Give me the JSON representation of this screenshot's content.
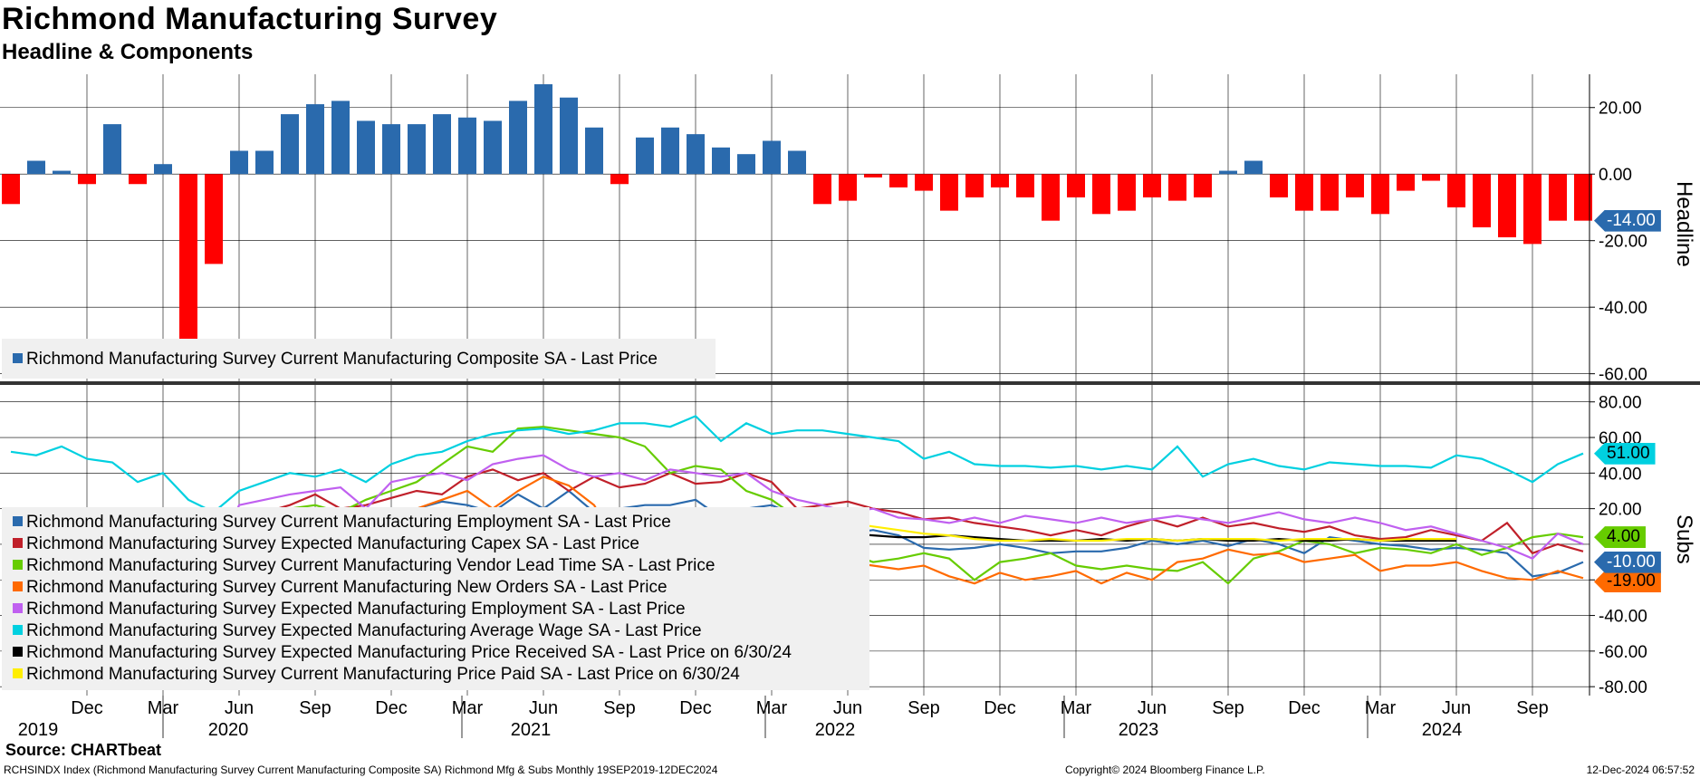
{
  "title": "Richmond Manufacturing Survey",
  "subtitle": "Headline & Components",
  "source": "Source: CHARTbeat",
  "footer": {
    "left": "RCHSINDX Index (Richmond Manufacturing Survey Current Manufacturing Composite SA) Richmond Mfg & Subs  Monthly 19SEP2019-12DEC2024",
    "center": "Copyright© 2024 Bloomberg Finance L.P.",
    "right": "12-Dec-2024 06:57:52"
  },
  "colors": {
    "positive_bar": "#2a6aad",
    "negative_bar": "#ff0000"
  },
  "chart_data": [
    {
      "type": "bar",
      "panel_label": "Headline",
      "ylim": [
        -62,
        30
      ],
      "yticks": [
        "20.00",
        "0.00",
        "-20.00",
        "-40.00",
        "-60.00"
      ],
      "last_value_label": "-14.00",
      "legend": "Richmond Manufacturing Survey Current Manufacturing Composite SA - Last Price",
      "categories": [
        "2019-09",
        "2019-10",
        "2019-11",
        "2019-12",
        "2020-01",
        "2020-02",
        "2020-03",
        "2020-04",
        "2020-05",
        "2020-06",
        "2020-07",
        "2020-08",
        "2020-09",
        "2020-10",
        "2020-11",
        "2020-12",
        "2021-01",
        "2021-02",
        "2021-03",
        "2021-04",
        "2021-05",
        "2021-06",
        "2021-07",
        "2021-08",
        "2021-09",
        "2021-10",
        "2021-11",
        "2021-12",
        "2022-01",
        "2022-02",
        "2022-03",
        "2022-04",
        "2022-05",
        "2022-06",
        "2022-07",
        "2022-08",
        "2022-09",
        "2022-10",
        "2022-11",
        "2022-12",
        "2023-01",
        "2023-02",
        "2023-03",
        "2023-04",
        "2023-05",
        "2023-06",
        "2023-07",
        "2023-08",
        "2023-09",
        "2023-10",
        "2023-11",
        "2023-12",
        "2024-01",
        "2024-02",
        "2024-03",
        "2024-04",
        "2024-05",
        "2024-06",
        "2024-07",
        "2024-08",
        "2024-09",
        "2024-10",
        "2024-11"
      ],
      "values": [
        -9,
        4,
        1,
        -3,
        15,
        -3,
        3,
        -54,
        -27,
        7,
        7,
        18,
        21,
        22,
        16,
        15,
        15,
        18,
        17,
        16,
        22,
        27,
        23,
        14,
        -3,
        11,
        14,
        12,
        8,
        6,
        10,
        7,
        -9,
        -8,
        -1,
        -4,
        -5,
        -11,
        -7,
        -4,
        -7,
        -14,
        -7,
        -12,
        -11,
        -7,
        -8,
        -7,
        1,
        4,
        -7,
        -11,
        -11,
        -7,
        -12,
        -5,
        -2,
        -10,
        -16,
        -19,
        -21,
        -14,
        -14
      ]
    },
    {
      "type": "line",
      "panel_label": "Subs",
      "ylim": [
        -85,
        88
      ],
      "yticks": [
        "80.00",
        "60.00",
        "40.00",
        "20.00",
        "-20.00",
        "-40.00",
        "-60.00",
        "-80.00"
      ],
      "x_start": "2019-09",
      "x_labels": [
        "Dec",
        "Mar",
        "Jun",
        "Sep",
        "Dec",
        "Mar",
        "Jun",
        "Sep",
        "Dec",
        "Mar",
        "Jun",
        "Sep",
        "Dec",
        "Mar",
        "Jun",
        "Sep",
        "Dec",
        "Mar",
        "Jun",
        "Sep"
      ],
      "year_labels": [
        "2019",
        "2020",
        "2021",
        "2022",
        "2023",
        "2024"
      ],
      "last_value_labels": [
        {
          "value": "51.00",
          "color": "#00d0e0"
        },
        {
          "value": "4.00",
          "color": "#66cc00"
        },
        {
          "value": "-10.00",
          "color": "#2a6aad"
        },
        {
          "value": "-19.00",
          "color": "#ff6a00"
        }
      ],
      "series": [
        {
          "name": "Richmond Manufacturing Survey Current Manufacturing Employment SA - Last Price",
          "color": "#2a6aad",
          "values": [
            5,
            10,
            12,
            8,
            10,
            0,
            -5,
            -20,
            -8,
            5,
            8,
            15,
            18,
            12,
            20,
            15,
            20,
            24,
            22,
            18,
            28,
            20,
            30,
            18,
            20,
            22,
            22,
            25,
            15,
            20,
            22,
            16,
            10,
            6,
            8,
            5,
            -2,
            -3,
            -2,
            0,
            -2,
            -5,
            -4,
            -4,
            -2,
            2,
            0,
            2,
            -1,
            3,
            0,
            -5,
            4,
            2,
            0,
            -1,
            -3,
            -2,
            -3,
            -5,
            -18,
            -16,
            -10
          ]
        },
        {
          "name": "Richmond Manufacturing Survey Expected Manufacturing Capex SA - Last Price",
          "color": "#c0202a",
          "values": [
            15,
            12,
            14,
            10,
            16,
            14,
            10,
            -25,
            -30,
            10,
            18,
            22,
            28,
            20,
            22,
            26,
            30,
            28,
            38,
            42,
            36,
            40,
            30,
            38,
            32,
            34,
            40,
            34,
            35,
            40,
            35,
            20,
            22,
            24,
            20,
            18,
            14,
            15,
            12,
            10,
            8,
            5,
            8,
            5,
            10,
            14,
            10,
            15,
            10,
            12,
            9,
            7,
            10,
            5,
            3,
            4,
            8,
            5,
            2,
            12,
            -5,
            0,
            -4
          ]
        },
        {
          "name": "Richmond Manufacturing Survey Current Manufacturing Vendor Lead Time SA - Last Price",
          "color": "#66cc00",
          "values": [
            5,
            8,
            4,
            6,
            20,
            15,
            10,
            -20,
            -40,
            2,
            12,
            20,
            22,
            18,
            25,
            30,
            35,
            45,
            55,
            52,
            65,
            66,
            64,
            62,
            60,
            55,
            40,
            44,
            42,
            30,
            25,
            15,
            5,
            -5,
            -10,
            -8,
            -5,
            -8,
            -20,
            -10,
            -8,
            -5,
            -12,
            -14,
            -12,
            -14,
            -15,
            -10,
            -22,
            -8,
            -4,
            2,
            0,
            -5,
            -2,
            -3,
            -5,
            0,
            -6,
            -2,
            4,
            6,
            4
          ]
        },
        {
          "name": "Richmond Manufacturing Survey Current Manufacturing New Orders SA - Last Price",
          "color": "#ff6a00",
          "values": [
            -10,
            -5,
            -4,
            -5,
            -3,
            -2,
            -1,
            -55,
            -30,
            5,
            10,
            15,
            18,
            10,
            15,
            15,
            20,
            25,
            30,
            20,
            30,
            38,
            33,
            22,
            -3,
            15,
            10,
            0,
            2,
            -5,
            -15,
            -5,
            -10,
            -10,
            -12,
            -14,
            -12,
            -18,
            -22,
            -16,
            -20,
            -18,
            -15,
            -22,
            -16,
            -20,
            -10,
            -8,
            -3,
            -6,
            -5,
            -10,
            -8,
            -6,
            -15,
            -12,
            -12,
            -10,
            -15,
            -19,
            -20,
            -15,
            -19
          ]
        },
        {
          "name": "Richmond Manufacturing Survey Expected Manufacturing Employment SA - Last Price",
          "color": "#c060f0",
          "values": [
            15,
            14,
            12,
            18,
            20,
            16,
            8,
            -5,
            -10,
            22,
            25,
            28,
            30,
            32,
            20,
            35,
            38,
            40,
            36,
            45,
            48,
            50,
            42,
            38,
            40,
            36,
            42,
            40,
            38,
            40,
            30,
            25,
            22,
            18,
            20,
            15,
            14,
            12,
            15,
            12,
            16,
            14,
            12,
            15,
            12,
            14,
            16,
            14,
            12,
            15,
            18,
            14,
            12,
            15,
            12,
            8,
            10,
            6,
            2,
            -2,
            -8,
            6,
            0
          ]
        },
        {
          "name": "Richmond Manufacturing Survey Expected Manufacturing Average Wage SA - Last Price",
          "color": "#00d0e0",
          "values": [
            52,
            50,
            55,
            48,
            46,
            35,
            40,
            25,
            18,
            30,
            35,
            40,
            38,
            42,
            35,
            45,
            50,
            52,
            58,
            62,
            64,
            65,
            62,
            64,
            68,
            68,
            66,
            72,
            58,
            68,
            62,
            64,
            64,
            62,
            60,
            58,
            48,
            52,
            45,
            44,
            44,
            43,
            44,
            42,
            44,
            42,
            55,
            38,
            45,
            48,
            44,
            42,
            46,
            45,
            44,
            44,
            43,
            50,
            48,
            42,
            35,
            45,
            51
          ]
        },
        {
          "name": "Richmond Manufacturing Survey Expected Manufacturing Price Received SA - Last Price on 6/30/24",
          "color": "#000000",
          "values": [
            null,
            null,
            null,
            null,
            null,
            null,
            null,
            null,
            null,
            null,
            null,
            null,
            null,
            null,
            null,
            null,
            null,
            null,
            null,
            null,
            null,
            null,
            null,
            null,
            null,
            null,
            null,
            null,
            null,
            null,
            8,
            8,
            8,
            6,
            5,
            4,
            4,
            5,
            4,
            3,
            2,
            2,
            2,
            3,
            2,
            3,
            2,
            3,
            2,
            2,
            3,
            2,
            2,
            3,
            2,
            2,
            2,
            2
          ]
        },
        {
          "name": "Richmond Manufacturing Survey Current Manufacturing Price Paid SA - Last Price on 6/30/24",
          "color": "#ffee00",
          "values": [
            null,
            null,
            null,
            null,
            null,
            null,
            null,
            null,
            null,
            null,
            null,
            null,
            null,
            null,
            null,
            null,
            null,
            null,
            null,
            null,
            null,
            null,
            null,
            null,
            null,
            null,
            null,
            null,
            null,
            null,
            12,
            14,
            14,
            12,
            10,
            8,
            6,
            5,
            3,
            2,
            2,
            3,
            2,
            2,
            3,
            3,
            2,
            3,
            3,
            3,
            2,
            3,
            3,
            3,
            2,
            3,
            3,
            3
          ]
        }
      ]
    }
  ]
}
